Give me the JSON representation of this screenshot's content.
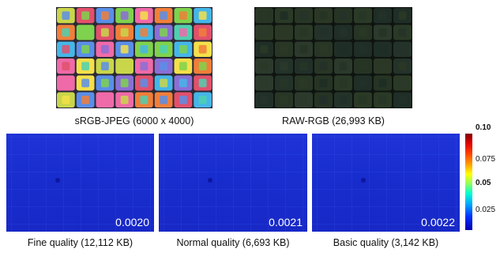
{
  "captions": {
    "srgb": "sRGB-JPEG (6000 x 4000)",
    "raw": "RAW-RGB (26,993 KB)",
    "fine": "Fine quality (12,112 KB)",
    "normal": "Normal quality (6,693 KB)",
    "basic": "Basic quality (3,142 KB)"
  },
  "error_values": {
    "fine": "0.0020",
    "normal": "0.0021",
    "basic": "0.0022"
  },
  "colorbar": {
    "ticks": [
      "0.10",
      "0.075",
      "0.05",
      "0.025"
    ],
    "min": 0,
    "max": 0.1
  },
  "colors": {
    "error_base": "#1f33d6",
    "photo_frame": "#2a2a32"
  }
}
